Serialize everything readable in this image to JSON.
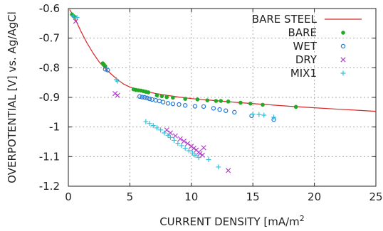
{
  "chart_data": {
    "type": "scatter",
    "xlabel": "CURRENT DENSITY [mA/m",
    "xlabel_superscript": "2",
    "ylabel": "OVERPOTENTIAL [V] vs. Ag/AgCl",
    "xlim": [
      0,
      25
    ],
    "ylim": [
      -1.2,
      -0.6
    ],
    "x_ticks": [
      "0",
      "5",
      "10",
      "15",
      "20",
      "25"
    ],
    "y_ticks": [
      "-0.6",
      "-0.7",
      "-0.8",
      "-0.9",
      "-1",
      "-1.1",
      "-1.2"
    ],
    "x_tick_values": [
      0,
      5,
      10,
      15,
      20,
      25
    ],
    "y_tick_values": [
      -0.6,
      -0.7,
      -0.8,
      -0.9,
      -1.0,
      -1.1,
      -1.2
    ],
    "grid": true,
    "legend_position": "top-right",
    "series": [
      {
        "name": "BARE STEEL",
        "kind": "line",
        "color": "#d62728",
        "points": [
          [
            0.1,
            -0.603
          ],
          [
            0.5,
            -0.63
          ],
          [
            1.0,
            -0.675
          ],
          [
            1.5,
            -0.715
          ],
          [
            2.0,
            -0.75
          ],
          [
            2.5,
            -0.78
          ],
          [
            3.0,
            -0.803
          ],
          [
            3.5,
            -0.822
          ],
          [
            4.0,
            -0.84
          ],
          [
            4.5,
            -0.855
          ],
          [
            5.0,
            -0.865
          ],
          [
            5.5,
            -0.872
          ],
          [
            6.0,
            -0.877
          ],
          [
            7.0,
            -0.886
          ],
          [
            8.0,
            -0.893
          ],
          [
            9.0,
            -0.899
          ],
          [
            10.0,
            -0.904
          ],
          [
            12.0,
            -0.911
          ],
          [
            14.0,
            -0.918
          ],
          [
            16.0,
            -0.924
          ],
          [
            18.0,
            -0.93
          ],
          [
            20.0,
            -0.935
          ],
          [
            22.0,
            -0.94
          ],
          [
            25.0,
            -0.947
          ]
        ]
      },
      {
        "name": "BARE",
        "kind": "scatter",
        "marker": "dot",
        "color": "#22aa22",
        "points": [
          [
            0.3,
            -0.62
          ],
          [
            0.4,
            -0.625
          ],
          [
            0.5,
            -0.628
          ],
          [
            2.8,
            -0.785
          ],
          [
            2.9,
            -0.79
          ],
          [
            3.0,
            -0.795
          ],
          [
            5.3,
            -0.873
          ],
          [
            5.5,
            -0.875
          ],
          [
            5.7,
            -0.876
          ],
          [
            5.9,
            -0.877
          ],
          [
            6.1,
            -0.879
          ],
          [
            6.3,
            -0.881
          ],
          [
            6.5,
            -0.883
          ],
          [
            7.2,
            -0.893
          ],
          [
            7.6,
            -0.896
          ],
          [
            8.0,
            -0.899
          ],
          [
            8.5,
            -0.901
          ],
          [
            9.5,
            -0.905
          ],
          [
            10.5,
            -0.907
          ],
          [
            11.3,
            -0.91
          ],
          [
            12.0,
            -0.912
          ],
          [
            12.4,
            -0.912
          ],
          [
            13.0,
            -0.914
          ],
          [
            14.0,
            -0.918
          ],
          [
            14.8,
            -0.921
          ],
          [
            15.8,
            -0.925
          ],
          [
            18.5,
            -0.932
          ]
        ]
      },
      {
        "name": "WET",
        "kind": "scatter",
        "marker": "circle",
        "color": "#1f77d4",
        "points": [
          [
            3.0,
            -0.805
          ],
          [
            3.2,
            -0.808
          ],
          [
            5.8,
            -0.897
          ],
          [
            6.0,
            -0.899
          ],
          [
            6.2,
            -0.9
          ],
          [
            6.4,
            -0.902
          ],
          [
            6.6,
            -0.905
          ],
          [
            6.8,
            -0.907
          ],
          [
            7.1,
            -0.91
          ],
          [
            7.4,
            -0.912
          ],
          [
            7.7,
            -0.916
          ],
          [
            8.1,
            -0.92
          ],
          [
            8.5,
            -0.922
          ],
          [
            9.0,
            -0.924
          ],
          [
            9.5,
            -0.927
          ],
          [
            10.3,
            -0.93
          ],
          [
            11.0,
            -0.931
          ],
          [
            11.8,
            -0.937
          ],
          [
            12.3,
            -0.941
          ],
          [
            12.8,
            -0.945
          ],
          [
            13.5,
            -0.95
          ],
          [
            14.9,
            -0.962
          ],
          [
            16.7,
            -0.975
          ]
        ]
      },
      {
        "name": "DRY",
        "kind": "scatter",
        "marker": "x",
        "color": "#b040c8",
        "points": [
          [
            0.6,
            -0.643
          ],
          [
            3.8,
            -0.887
          ],
          [
            4.0,
            -0.893
          ],
          [
            8.0,
            -1.01
          ],
          [
            8.3,
            -1.02
          ],
          [
            8.7,
            -1.03
          ],
          [
            9.1,
            -1.04
          ],
          [
            9.4,
            -1.048
          ],
          [
            9.7,
            -1.056
          ],
          [
            10.0,
            -1.065
          ],
          [
            10.2,
            -1.072
          ],
          [
            10.4,
            -1.078
          ],
          [
            10.6,
            -1.085
          ],
          [
            10.7,
            -1.09
          ],
          [
            10.9,
            -1.095
          ],
          [
            11.0,
            -1.07
          ],
          [
            13.0,
            -1.147
          ]
        ]
      },
      {
        "name": "MIX1",
        "kind": "scatter",
        "marker": "plus",
        "color": "#33c0d8",
        "points": [
          [
            0.4,
            -0.625
          ],
          [
            0.7,
            -0.63
          ],
          [
            3.9,
            -0.84
          ],
          [
            4.0,
            -0.845
          ],
          [
            6.3,
            -0.982
          ],
          [
            6.6,
            -0.988
          ],
          [
            6.9,
            -0.995
          ],
          [
            7.2,
            -1.003
          ],
          [
            7.5,
            -1.01
          ],
          [
            7.8,
            -1.02
          ],
          [
            8.1,
            -1.028
          ],
          [
            8.3,
            -1.035
          ],
          [
            8.6,
            -1.045
          ],
          [
            8.9,
            -1.055
          ],
          [
            9.2,
            -1.063
          ],
          [
            9.5,
            -1.072
          ],
          [
            9.8,
            -1.08
          ],
          [
            10.1,
            -1.088
          ],
          [
            10.3,
            -1.095
          ],
          [
            10.6,
            -1.103
          ],
          [
            11.4,
            -1.11
          ],
          [
            12.2,
            -1.135
          ],
          [
            15.0,
            -0.957
          ],
          [
            15.5,
            -0.958
          ],
          [
            15.9,
            -0.96
          ],
          [
            16.7,
            -0.967
          ]
        ]
      }
    ]
  }
}
